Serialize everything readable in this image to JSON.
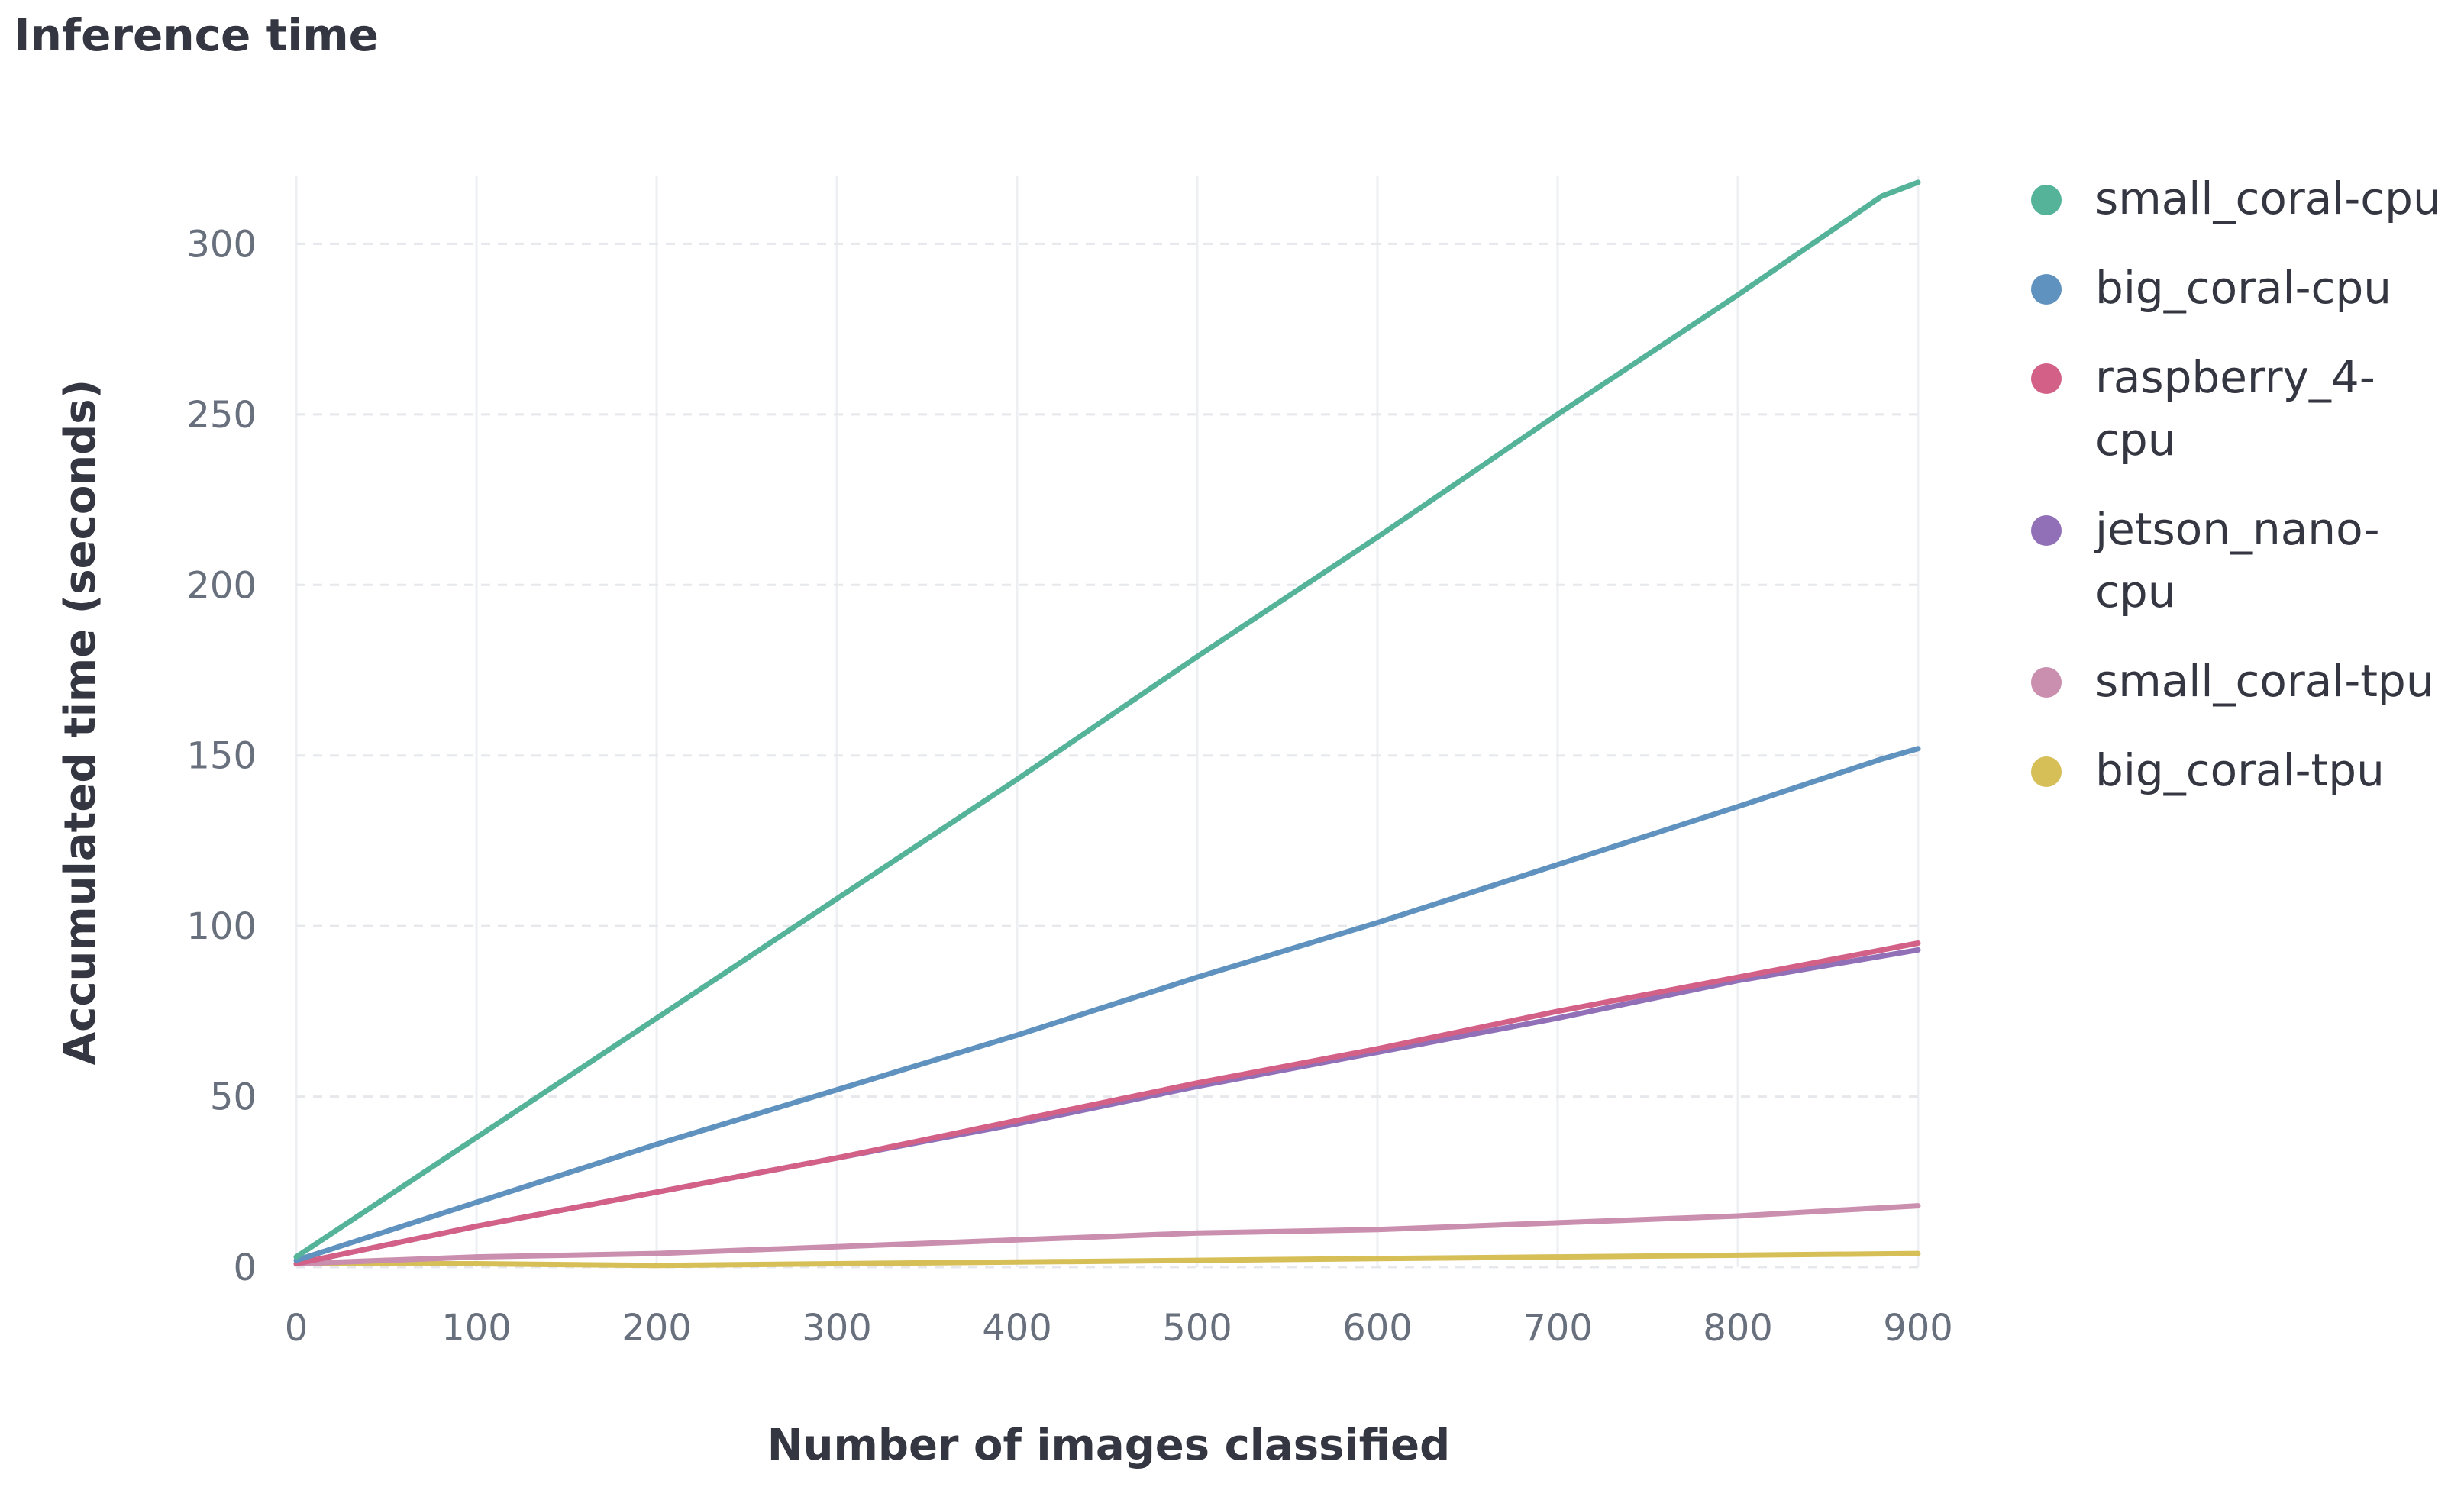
{
  "chart_data": {
    "type": "line",
    "title": "Inference time",
    "xlabel": "Number of images classified",
    "ylabel": "Accumulated time (seconds)",
    "xlim": [
      0,
      900
    ],
    "ylim": [
      0,
      320
    ],
    "x_ticks": [
      "0",
      "100",
      "200",
      "300",
      "400",
      "500",
      "600",
      "700",
      "800",
      "900"
    ],
    "y_ticks": [
      "0",
      "50",
      "100",
      "150",
      "200",
      "250",
      "300"
    ],
    "grid": true,
    "legend_position": "right",
    "series": [
      {
        "name": "small_coral-cpu",
        "color": "#54b399",
        "points": [
          [
            0,
            3
          ],
          [
            100,
            38
          ],
          [
            200,
            73
          ],
          [
            300,
            108
          ],
          [
            400,
            143
          ],
          [
            500,
            179
          ],
          [
            600,
            214
          ],
          [
            700,
            250
          ],
          [
            800,
            285
          ],
          [
            880,
            314
          ],
          [
            900,
            318
          ]
        ]
      },
      {
        "name": "big_coral-cpu",
        "color": "#6092c0",
        "points": [
          [
            0,
            2
          ],
          [
            100,
            19
          ],
          [
            200,
            36
          ],
          [
            300,
            52
          ],
          [
            400,
            68
          ],
          [
            500,
            85
          ],
          [
            600,
            101
          ],
          [
            700,
            118
          ],
          [
            800,
            135
          ],
          [
            880,
            149
          ],
          [
            900,
            152
          ]
        ]
      },
      {
        "name": "raspberry_4-cpu",
        "color": "#d36086",
        "points": [
          [
            0,
            1
          ],
          [
            100,
            12
          ],
          [
            200,
            22
          ],
          [
            300,
            32
          ],
          [
            400,
            43
          ],
          [
            500,
            54
          ],
          [
            600,
            64
          ],
          [
            700,
            75
          ],
          [
            800,
            85
          ],
          [
            900,
            95
          ]
        ]
      },
      {
        "name": "jetson_nano-cpu",
        "color": "#9170b8",
        "points": [
          [
            0,
            1
          ],
          [
            100,
            12
          ],
          [
            200,
            22
          ],
          [
            300,
            32
          ],
          [
            400,
            42
          ],
          [
            500,
            53
          ],
          [
            600,
            63
          ],
          [
            700,
            73
          ],
          [
            800,
            84
          ],
          [
            900,
            93
          ]
        ]
      },
      {
        "name": "small_coral-tpu",
        "color": "#ca8eae",
        "points": [
          [
            0,
            1
          ],
          [
            100,
            3
          ],
          [
            200,
            4
          ],
          [
            300,
            6
          ],
          [
            400,
            8
          ],
          [
            500,
            10
          ],
          [
            600,
            11
          ],
          [
            700,
            13
          ],
          [
            800,
            15
          ],
          [
            900,
            18
          ]
        ]
      },
      {
        "name": "big_coral-tpu",
        "color": "#d6bf57",
        "points": [
          [
            0,
            1
          ],
          [
            100,
            1
          ],
          [
            200,
            0.5
          ],
          [
            300,
            1
          ],
          [
            400,
            1.5
          ],
          [
            500,
            2
          ],
          [
            600,
            2.5
          ],
          [
            700,
            3
          ],
          [
            800,
            3.5
          ],
          [
            900,
            4
          ]
        ]
      }
    ],
    "legend_lines": [
      [
        "small_coral-cpu"
      ],
      [
        "big_coral-cpu"
      ],
      [
        "raspberry_4-",
        "cpu"
      ],
      [
        "jetson_nano-",
        "cpu"
      ],
      [
        "small_coral-tpu"
      ],
      [
        "big_coral-tpu"
      ]
    ]
  }
}
